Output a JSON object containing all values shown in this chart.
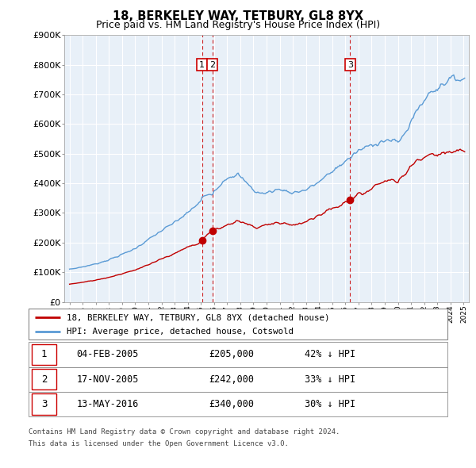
{
  "title": "18, BERKELEY WAY, TETBURY, GL8 8YX",
  "subtitle": "Price paid vs. HM Land Registry's House Price Index (HPI)",
  "ylim": [
    0,
    900000
  ],
  "yticks": [
    0,
    100000,
    200000,
    300000,
    400000,
    500000,
    600000,
    700000,
    800000,
    900000
  ],
  "ytick_labels": [
    "£0",
    "£100K",
    "£200K",
    "£300K",
    "£400K",
    "£500K",
    "£600K",
    "£700K",
    "£800K",
    "£900K"
  ],
  "hpi_color": "#5b9bd5",
  "price_color": "#c00000",
  "vline_color": "#cc0000",
  "chart_bg": "#e8f0f8",
  "grid_color": "#ffffff",
  "transactions": [
    {
      "label": "1",
      "date": "04-FEB-2005",
      "price": 205000,
      "hpi_pct": "42% ↓ HPI",
      "x_year": 2005.08
    },
    {
      "label": "2",
      "date": "17-NOV-2005",
      "price": 242000,
      "hpi_pct": "33% ↓ HPI",
      "x_year": 2005.88
    },
    {
      "label": "3",
      "date": "13-MAY-2016",
      "price": 340000,
      "hpi_pct": "30% ↓ HPI",
      "x_year": 2016.37
    }
  ],
  "legend_entries": [
    "18, BERKELEY WAY, TETBURY, GL8 8YX (detached house)",
    "HPI: Average price, detached house, Cotswold"
  ],
  "footnote_line1": "Contains HM Land Registry data © Crown copyright and database right 2024.",
  "footnote_line2": "This data is licensed under the Open Government Licence v3.0.",
  "xlim_left": 1994.6,
  "xlim_right": 2025.4
}
